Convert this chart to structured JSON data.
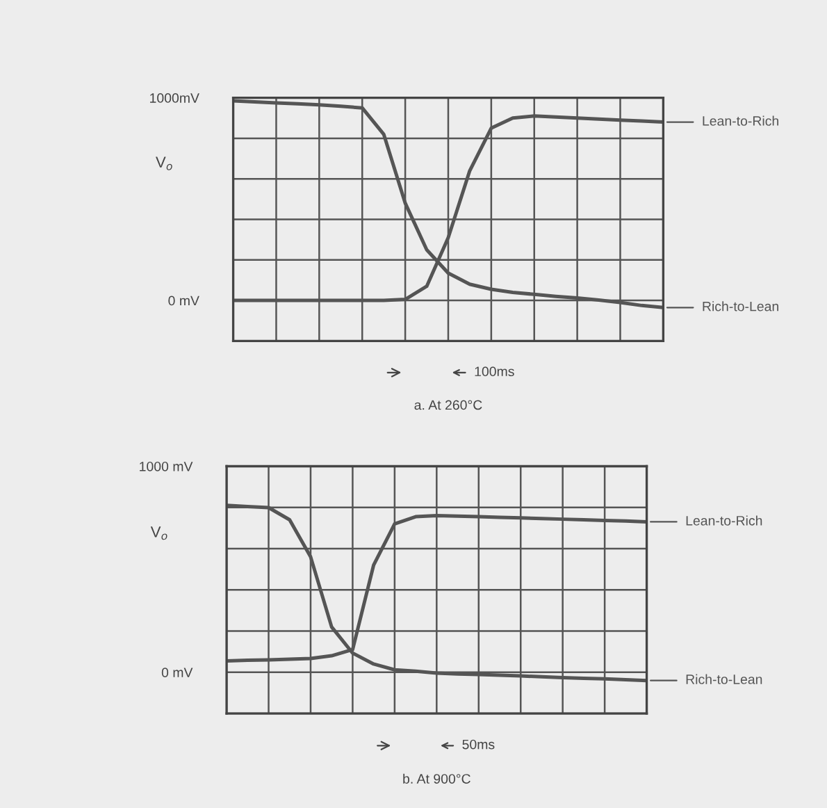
{
  "chart_data": [
    {
      "type": "line",
      "title": "a. At 260°C",
      "ylabel": "V$_{o}$",
      "categories": [
        null,
        null,
        null,
        null,
        null,
        null,
        null,
        null,
        null,
        null,
        null,
        null,
        null,
        null,
        null,
        null,
        null,
        null,
        null,
        null,
        null
      ],
      "series": [
        {
          "name": "Lean-to-Rich",
          "color": "#555555",
          "values": [
            0,
            0,
            0,
            0,
            0,
            0,
            0,
            0,
            5,
            70,
            310,
            640,
            850,
            900,
            910,
            905,
            900,
            895,
            890,
            885,
            880
          ]
        },
        {
          "name": "Rich-to-Lean",
          "color": "#555555",
          "values": [
            985,
            980,
            975,
            970,
            965,
            958,
            950,
            820,
            480,
            250,
            135,
            80,
            55,
            40,
            30,
            20,
            12,
            2,
            -10,
            -25,
            -35
          ]
        }
      ],
      "ylim": [
        -200,
        1000
      ],
      "yticks": [
        {
          "value": -200,
          "label": null
        },
        {
          "value": 0,
          "label": "0 mV"
        },
        {
          "value": 200,
          "label": null
        },
        {
          "value": 400,
          "label": null
        },
        {
          "value": 600,
          "label": null
        },
        {
          "value": 800,
          "label": null
        },
        {
          "value": 1000,
          "label": "1000mV"
        }
      ],
      "annotations": [
        "100ms"
      ],
      "legend": "right",
      "grid": true,
      "tick_labels": "y",
      "line_style": "solid",
      "marker": "none"
    },
    {
      "type": "line",
      "title": "b. At 900°C",
      "ylabel": "V$_{o}$",
      "categories": [
        null,
        null,
        null,
        null,
        null,
        null,
        null,
        null,
        null,
        null,
        null,
        null,
        null,
        null,
        null,
        null,
        null,
        null,
        null,
        null,
        null
      ],
      "series": [
        {
          "name": "Lean-to-Rich",
          "color": "#555555",
          "values": [
            55,
            58,
            60,
            63,
            67,
            80,
            110,
            520,
            720,
            755,
            760,
            758,
            755,
            752,
            749,
            746,
            743,
            740,
            737,
            734,
            730
          ]
        },
        {
          "name": "Rich-to-Lean",
          "color": "#555555",
          "values": [
            810,
            804,
            799,
            740,
            560,
            220,
            93,
            40,
            12,
            5,
            -4,
            -8,
            -11,
            -14,
            -18,
            -22,
            -26,
            -29,
            -32,
            -36,
            -40
          ]
        }
      ],
      "ylim": [
        -200,
        1000
      ],
      "yticks": [
        {
          "value": -200,
          "label": null
        },
        {
          "value": 0,
          "label": "0 mV"
        },
        {
          "value": 200,
          "label": null
        },
        {
          "value": 400,
          "label": null
        },
        {
          "value": 600,
          "label": null
        },
        {
          "value": 800,
          "label": null
        },
        {
          "value": 1000,
          "label": "1000 mV"
        }
      ],
      "annotations": [
        "50ms"
      ],
      "legend": "right",
      "grid": true,
      "tick_labels": "y",
      "line_style": "solid",
      "marker": "none"
    }
  ]
}
